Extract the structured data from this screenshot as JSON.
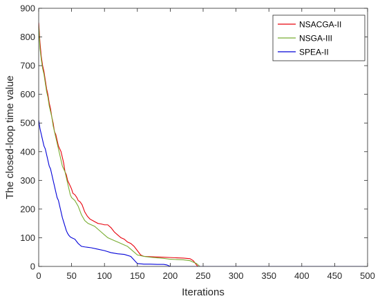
{
  "chart_data": {
    "type": "line",
    "xlabel": "Iterations",
    "ylabel": "The closed-loop time value",
    "xlim": [
      0,
      500
    ],
    "ylim": [
      0,
      900
    ],
    "xticks": [
      0,
      50,
      100,
      150,
      200,
      250,
      300,
      350,
      400,
      450,
      500
    ],
    "yticks": [
      0,
      100,
      200,
      300,
      400,
      500,
      600,
      700,
      800,
      900
    ],
    "grid": false,
    "legend_position": "top-right",
    "series": [
      {
        "name": "NSACGA-II",
        "color": "#e8000b",
        "points": [
          [
            0,
            850
          ],
          [
            2,
            780
          ],
          [
            4,
            730
          ],
          [
            6,
            700
          ],
          [
            8,
            680
          ],
          [
            10,
            650
          ],
          [
            12,
            620
          ],
          [
            14,
            600
          ],
          [
            16,
            570
          ],
          [
            18,
            550
          ],
          [
            20,
            520
          ],
          [
            22,
            500
          ],
          [
            24,
            470
          ],
          [
            26,
            460
          ],
          [
            28,
            440
          ],
          [
            30,
            420
          ],
          [
            32,
            410
          ],
          [
            34,
            400
          ],
          [
            36,
            380
          ],
          [
            38,
            360
          ],
          [
            40,
            330
          ],
          [
            42,
            320
          ],
          [
            44,
            300
          ],
          [
            46,
            290
          ],
          [
            48,
            280
          ],
          [
            50,
            270
          ],
          [
            52,
            255
          ],
          [
            55,
            250
          ],
          [
            58,
            240
          ],
          [
            60,
            230
          ],
          [
            63,
            225
          ],
          [
            66,
            215
          ],
          [
            70,
            190
          ],
          [
            74,
            175
          ],
          [
            78,
            165
          ],
          [
            82,
            160
          ],
          [
            86,
            155
          ],
          [
            90,
            150
          ],
          [
            95,
            148
          ],
          [
            100,
            145
          ],
          [
            105,
            145
          ],
          [
            110,
            135
          ],
          [
            115,
            120
          ],
          [
            120,
            110
          ],
          [
            125,
            100
          ],
          [
            130,
            95
          ],
          [
            135,
            85
          ],
          [
            140,
            80
          ],
          [
            145,
            70
          ],
          [
            150,
            55
          ],
          [
            155,
            40
          ],
          [
            160,
            35
          ],
          [
            170,
            34
          ],
          [
            180,
            33
          ],
          [
            190,
            32
          ],
          [
            200,
            31
          ],
          [
            210,
            30
          ],
          [
            220,
            29
          ],
          [
            230,
            27
          ],
          [
            235,
            20
          ],
          [
            240,
            5
          ],
          [
            242,
            0
          ],
          [
            500,
            0
          ]
        ]
      },
      {
        "name": "NSGA-III",
        "color": "#77ac30",
        "points": [
          [
            0,
            840
          ],
          [
            2,
            760
          ],
          [
            4,
            720
          ],
          [
            6,
            690
          ],
          [
            8,
            670
          ],
          [
            10,
            640
          ],
          [
            12,
            610
          ],
          [
            14,
            590
          ],
          [
            16,
            560
          ],
          [
            18,
            540
          ],
          [
            20,
            520
          ],
          [
            22,
            490
          ],
          [
            24,
            470
          ],
          [
            26,
            450
          ],
          [
            28,
            430
          ],
          [
            30,
            410
          ],
          [
            32,
            390
          ],
          [
            34,
            370
          ],
          [
            36,
            350
          ],
          [
            38,
            340
          ],
          [
            40,
            330
          ],
          [
            42,
            310
          ],
          [
            44,
            290
          ],
          [
            46,
            270
          ],
          [
            48,
            250
          ],
          [
            50,
            240
          ],
          [
            55,
            230
          ],
          [
            60,
            210
          ],
          [
            65,
            180
          ],
          [
            70,
            160
          ],
          [
            75,
            150
          ],
          [
            80,
            145
          ],
          [
            85,
            140
          ],
          [
            90,
            130
          ],
          [
            95,
            120
          ],
          [
            100,
            110
          ],
          [
            105,
            100
          ],
          [
            110,
            95
          ],
          [
            115,
            90
          ],
          [
            120,
            85
          ],
          [
            125,
            80
          ],
          [
            130,
            75
          ],
          [
            135,
            70
          ],
          [
            140,
            60
          ],
          [
            145,
            50
          ],
          [
            150,
            40
          ],
          [
            160,
            35
          ],
          [
            170,
            32
          ],
          [
            180,
            30
          ],
          [
            190,
            28
          ],
          [
            200,
            25
          ],
          [
            210,
            24
          ],
          [
            220,
            23
          ],
          [
            230,
            20
          ],
          [
            240,
            10
          ],
          [
            245,
            0
          ],
          [
            500,
            0
          ]
        ]
      },
      {
        "name": "SPEA-II",
        "color": "#0000d8",
        "points": [
          [
            0,
            510
          ],
          [
            2,
            480
          ],
          [
            4,
            460
          ],
          [
            6,
            440
          ],
          [
            8,
            420
          ],
          [
            10,
            410
          ],
          [
            12,
            390
          ],
          [
            14,
            370
          ],
          [
            16,
            350
          ],
          [
            18,
            340
          ],
          [
            20,
            320
          ],
          [
            22,
            300
          ],
          [
            24,
            280
          ],
          [
            26,
            260
          ],
          [
            28,
            240
          ],
          [
            30,
            230
          ],
          [
            32,
            210
          ],
          [
            34,
            190
          ],
          [
            36,
            170
          ],
          [
            38,
            155
          ],
          [
            40,
            140
          ],
          [
            42,
            125
          ],
          [
            44,
            115
          ],
          [
            46,
            108
          ],
          [
            48,
            103
          ],
          [
            50,
            100
          ],
          [
            55,
            95
          ],
          [
            60,
            80
          ],
          [
            65,
            70
          ],
          [
            70,
            68
          ],
          [
            80,
            65
          ],
          [
            90,
            60
          ],
          [
            100,
            55
          ],
          [
            110,
            48
          ],
          [
            120,
            44
          ],
          [
            130,
            42
          ],
          [
            140,
            35
          ],
          [
            150,
            10
          ],
          [
            160,
            8
          ],
          [
            170,
            8
          ],
          [
            180,
            7
          ],
          [
            190,
            7
          ],
          [
            195,
            5
          ],
          [
            200,
            0
          ],
          [
            500,
            0
          ]
        ]
      }
    ]
  }
}
